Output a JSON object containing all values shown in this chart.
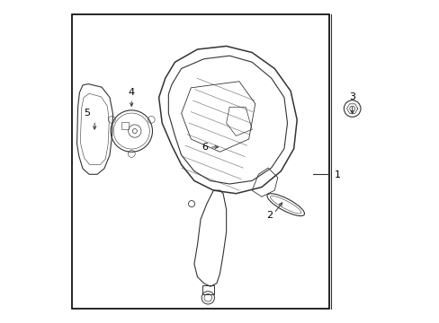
{
  "bg_color": "#ffffff",
  "border_color": "#000000",
  "line_color": "#333333",
  "text_color": "#000000",
  "fig_width": 4.89,
  "fig_height": 3.6,
  "dpi": 100
}
